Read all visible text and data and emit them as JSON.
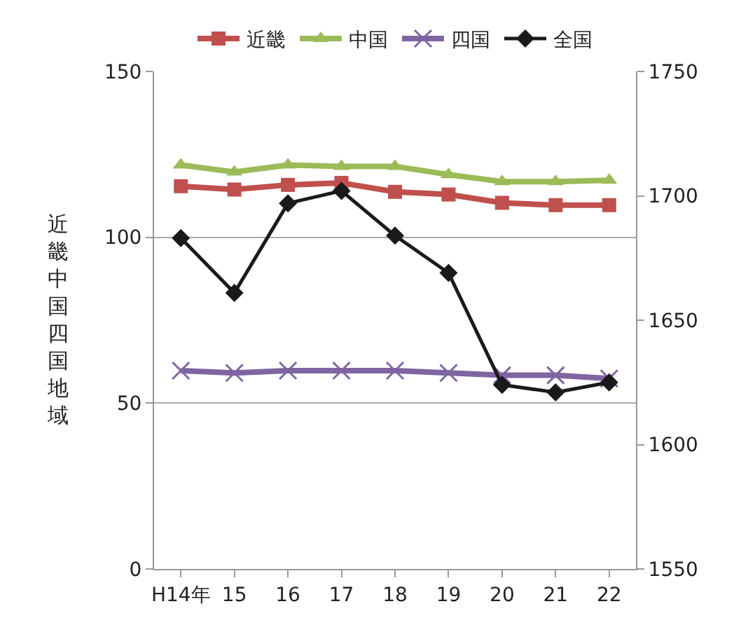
{
  "chart_data": {
    "type": "line",
    "ylabel": "近畿中国四国地域",
    "categories": [
      "H14年",
      "15",
      "16",
      "17",
      "18",
      "19",
      "20",
      "21",
      "22"
    ],
    "series": [
      {
        "name": "近畿",
        "color": "#c0504d",
        "marker": "square",
        "values": [
          115.4,
          114.4,
          115.8,
          116.4,
          113.7,
          112.9,
          110.4,
          109.7,
          109.7
        ]
      },
      {
        "name": "中国",
        "color": "#9bbb59",
        "marker": "triangle",
        "values": [
          121.8,
          119.7,
          121.8,
          121.4,
          121.4,
          118.9,
          116.8,
          116.8,
          117.2
        ]
      },
      {
        "name": "四国",
        "color": "#8064a2",
        "marker": "cross",
        "values": [
          59.8,
          59.1,
          59.8,
          59.8,
          59.8,
          59.1,
          58.4,
          58.4,
          57.4
        ]
      },
      {
        "name": "全国",
        "color": "#1a1a1a",
        "marker": "diamond",
        "axis": "y2",
        "values": [
          1683,
          1661,
          1697,
          1702,
          1684,
          1669,
          1624,
          1621,
          1625
        ]
      }
    ],
    "ylim": [
      0,
      150
    ],
    "yticks": [
      0,
      50,
      100,
      150
    ],
    "y2lim": [
      1550,
      1750
    ],
    "y2ticks": [
      1550,
      1600,
      1650,
      1700,
      1750
    ],
    "grid": "y",
    "legend": "top"
  }
}
